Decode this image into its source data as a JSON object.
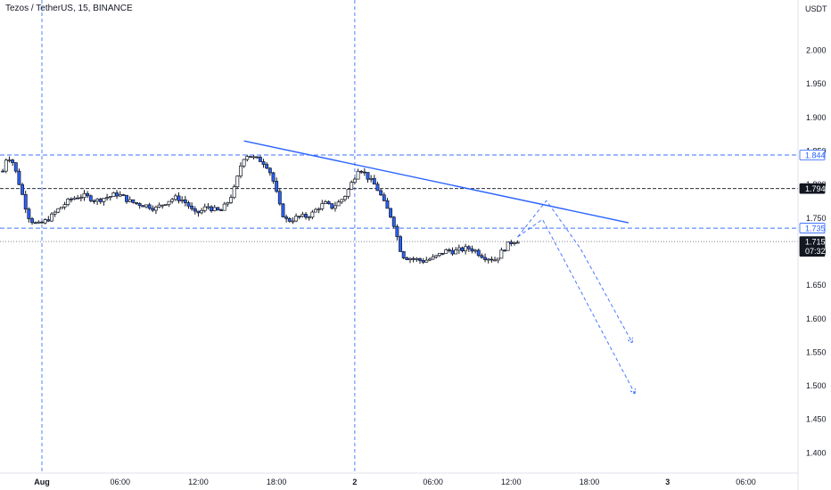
{
  "header": {
    "title": "Tezos / TetherUS, 15, BINANCE",
    "currency": "USDT"
  },
  "colors": {
    "up_candle": "#ffffff",
    "down_candle": "#2962ff",
    "candle_border": "#131722",
    "trendline": "#2962ff",
    "level_line": "#2962ff",
    "black_level": "#131722",
    "tag_blue": "#2962ff",
    "tag_black": "#131722"
  },
  "chart_data": {
    "type": "candlestick",
    "ylim": [
      1.37,
      2.075
    ],
    "y_ticks": [
      "2.000",
      "1.950",
      "1.900",
      "1.850",
      "1.800",
      "1.750",
      "1.700",
      "1.650",
      "1.600",
      "1.550",
      "1.500",
      "1.450",
      "1.400"
    ],
    "x_ticks": [
      {
        "label": "Aug",
        "hours": 0
      },
      {
        "label": "06:00",
        "hours": 6
      },
      {
        "label": "12:00",
        "hours": 12
      },
      {
        "label": "18:00",
        "hours": 18
      },
      {
        "label": "2",
        "hours": 24
      },
      {
        "label": "06:00",
        "hours": 30
      },
      {
        "label": "12:00",
        "hours": 36
      },
      {
        "label": "18:00",
        "hours": 42
      },
      {
        "label": "3",
        "hours": 48
      },
      {
        "label": "06:00",
        "hours": 54
      }
    ],
    "price_path": [
      [
        -3.0,
        1.82
      ],
      [
        -2.8,
        1.838
      ],
      [
        -2.5,
        1.84
      ],
      [
        -2.2,
        1.832
      ],
      [
        -1.9,
        1.812
      ],
      [
        -1.6,
        1.792
      ],
      [
        -1.3,
        1.77
      ],
      [
        -1.0,
        1.752
      ],
      [
        -0.6,
        1.742
      ],
      [
        -0.2,
        1.74
      ],
      [
        0.3,
        1.746
      ],
      [
        0.7,
        1.752
      ],
      [
        1.2,
        1.762
      ],
      [
        1.7,
        1.77
      ],
      [
        2.2,
        1.778
      ],
      [
        2.7,
        1.782
      ],
      [
        3.2,
        1.783
      ],
      [
        3.7,
        1.78
      ],
      [
        4.2,
        1.776
      ],
      [
        4.7,
        1.78
      ],
      [
        5.2,
        1.782
      ],
      [
        5.7,
        1.786
      ],
      [
        6.2,
        1.782
      ],
      [
        6.7,
        1.775
      ],
      [
        7.2,
        1.772
      ],
      [
        7.7,
        1.77
      ],
      [
        8.2,
        1.768
      ],
      [
        8.7,
        1.764
      ],
      [
        9.2,
        1.77
      ],
      [
        9.7,
        1.776
      ],
      [
        10.2,
        1.78
      ],
      [
        10.7,
        1.778
      ],
      [
        11.2,
        1.77
      ],
      [
        11.7,
        1.756
      ],
      [
        12.2,
        1.76
      ],
      [
        12.7,
        1.768
      ],
      [
        13.2,
        1.762
      ],
      [
        13.7,
        1.76
      ],
      [
        14.2,
        1.772
      ],
      [
        14.7,
        1.79
      ],
      [
        15.0,
        1.81
      ],
      [
        15.3,
        1.832
      ],
      [
        15.6,
        1.845
      ],
      [
        16.0,
        1.842
      ],
      [
        16.4,
        1.838
      ],
      [
        16.8,
        1.836
      ],
      [
        17.2,
        1.83
      ],
      [
        17.6,
        1.815
      ],
      [
        17.9,
        1.795
      ],
      [
        18.2,
        1.77
      ],
      [
        18.5,
        1.755
      ],
      [
        18.8,
        1.746
      ],
      [
        19.2,
        1.748
      ],
      [
        19.7,
        1.752
      ],
      [
        20.2,
        1.752
      ],
      [
        20.7,
        1.756
      ],
      [
        21.2,
        1.766
      ],
      [
        21.7,
        1.772
      ],
      [
        22.2,
        1.766
      ],
      [
        22.7,
        1.772
      ],
      [
        23.2,
        1.782
      ],
      [
        23.6,
        1.796
      ],
      [
        24.0,
        1.812
      ],
      [
        24.3,
        1.826
      ],
      [
        24.7,
        1.818
      ],
      [
        25.1,
        1.808
      ],
      [
        25.5,
        1.8
      ],
      [
        25.9,
        1.788
      ],
      [
        26.3,
        1.77
      ],
      [
        26.7,
        1.756
      ],
      [
        27.1,
        1.736
      ],
      [
        27.4,
        1.708
      ],
      [
        27.7,
        1.694
      ],
      [
        28.0,
        1.691
      ],
      [
        28.4,
        1.69
      ],
      [
        28.8,
        1.688
      ],
      [
        29.2,
        1.686
      ],
      [
        29.6,
        1.688
      ],
      [
        30.0,
        1.69
      ],
      [
        30.4,
        1.694
      ],
      [
        30.8,
        1.7
      ],
      [
        31.2,
        1.702
      ],
      [
        31.6,
        1.7
      ],
      [
        32.0,
        1.702
      ],
      [
        32.4,
        1.704
      ],
      [
        32.8,
        1.705
      ],
      [
        33.2,
        1.702
      ],
      [
        33.6,
        1.696
      ],
      [
        34.0,
        1.692
      ],
      [
        34.4,
        1.69
      ],
      [
        34.8,
        1.688
      ],
      [
        35.2,
        1.698
      ],
      [
        35.6,
        1.708
      ],
      [
        36.0,
        1.714
      ],
      [
        36.4,
        1.718
      ],
      [
        36.7,
        1.715
      ]
    ],
    "levels": [
      {
        "price": 1.844,
        "label": "1.844",
        "style": "dashed-blue"
      },
      {
        "price": 1.794,
        "label": "1.794",
        "style": "dashed-black"
      },
      {
        "price": 1.735,
        "label": "1.735",
        "style": "dashed-blue"
      },
      {
        "price": 1.715,
        "label": "1.715",
        "countdown": "07:32",
        "style": "dotted-grey"
      }
    ],
    "trendline": [
      [
        15.5,
        1.865
      ],
      [
        45.0,
        1.743
      ]
    ],
    "projections": [
      [
        [
          36.5,
          1.722
        ],
        [
          38.7,
          1.776
        ],
        [
          41.3,
          1.705
        ],
        [
          45.3,
          1.564
        ]
      ],
      [
        [
          36.5,
          1.722
        ],
        [
          38.4,
          1.748
        ],
        [
          40.0,
          1.69
        ],
        [
          45.5,
          1.488
        ]
      ]
    ],
    "vertical_markers_hours": [
      0,
      24
    ]
  }
}
